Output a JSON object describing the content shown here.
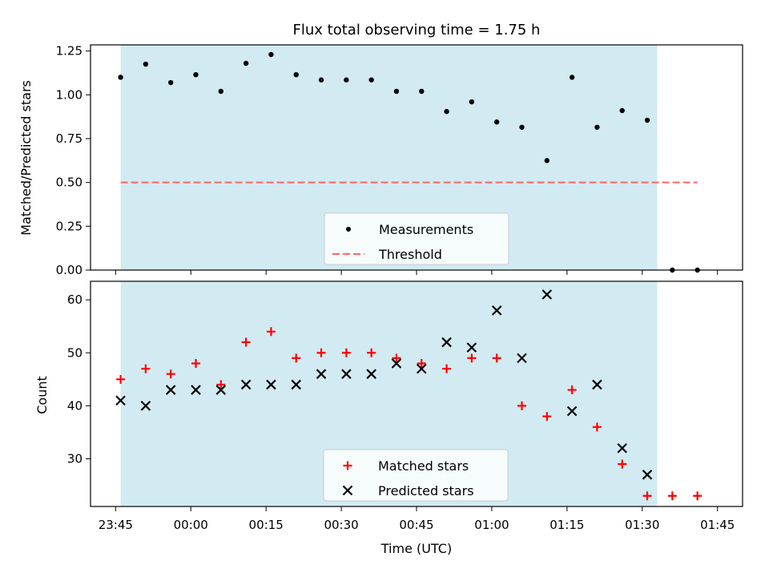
{
  "title": "Flux total observing time = 1.75 h",
  "colors": {
    "span": "#add8e6",
    "measurement": "#000000",
    "threshold": "#ff6666",
    "matched": "#ff0000",
    "predicted": "#000000"
  },
  "chart_data": [
    {
      "type": "scatter",
      "ylabel": "Matched/Predicted stars",
      "ylim": [
        0,
        1.285
      ],
      "yticks": [
        "0.00",
        "0.25",
        "0.50",
        "0.75",
        "1.00",
        "1.25"
      ],
      "xlim_minutes": [
        -20,
        110
      ],
      "shaded_span": [
        "23:46",
        "01:33"
      ],
      "legend_placement": "lower center",
      "series": [
        {
          "name": "Measurements",
          "marker": "dot",
          "x": [
            "23:46",
            "23:51",
            "23:56",
            "00:01",
            "00:06",
            "00:11",
            "00:16",
            "00:21",
            "00:26",
            "00:31",
            "00:36",
            "00:41",
            "00:46",
            "00:51",
            "00:56",
            "01:01",
            "01:06",
            "01:11",
            "01:16",
            "01:21",
            "01:26",
            "01:31",
            "01:36",
            "01:41"
          ],
          "y": [
            1.1,
            1.175,
            1.07,
            1.115,
            1.02,
            1.18,
            1.23,
            1.115,
            1.085,
            1.085,
            1.085,
            1.02,
            1.02,
            0.905,
            0.96,
            0.845,
            0.815,
            0.625,
            1.1,
            0.815,
            0.91,
            0.855,
            0.0,
            0.0
          ]
        },
        {
          "name": "Threshold",
          "marker": "dashed-line",
          "x": [
            "23:46",
            "01:41"
          ],
          "y": [
            0.5,
            0.5
          ]
        }
      ]
    },
    {
      "type": "scatter",
      "ylabel": "Count",
      "xlabel": "Time (UTC)",
      "ylim": [
        21,
        63.5
      ],
      "yticks": [
        "30",
        "40",
        "50",
        "60"
      ],
      "xticks": [
        "23:45",
        "00:00",
        "00:15",
        "00:30",
        "00:45",
        "01:00",
        "01:15",
        "01:30",
        "01:45"
      ],
      "xlim_minutes": [
        -20,
        110
      ],
      "shaded_span": [
        "23:46",
        "01:33"
      ],
      "legend_placement": "lower center",
      "series": [
        {
          "name": "Matched stars",
          "marker": "plus",
          "x": [
            "23:46",
            "23:51",
            "23:56",
            "00:01",
            "00:06",
            "00:11",
            "00:16",
            "00:21",
            "00:26",
            "00:31",
            "00:36",
            "00:41",
            "00:46",
            "00:51",
            "00:56",
            "01:01",
            "01:06",
            "01:11",
            "01:16",
            "01:21",
            "01:26",
            "01:31",
            "01:36",
            "01:41"
          ],
          "y": [
            45,
            47,
            46,
            48,
            44,
            52,
            54,
            49,
            50,
            50,
            50,
            49,
            48,
            47,
            49,
            49,
            40,
            38,
            43,
            36,
            29,
            23,
            23,
            23
          ]
        },
        {
          "name": "Predicted stars",
          "marker": "x",
          "x": [
            "23:46",
            "23:51",
            "23:56",
            "00:01",
            "00:06",
            "00:11",
            "00:16",
            "00:21",
            "00:26",
            "00:31",
            "00:36",
            "00:41",
            "00:46",
            "00:51",
            "00:56",
            "01:01",
            "01:06",
            "01:11",
            "01:16",
            "01:21",
            "01:26",
            "01:31"
          ],
          "y": [
            41,
            40,
            43,
            43,
            43,
            44,
            44,
            44,
            46,
            46,
            46,
            48,
            47,
            52,
            51,
            58,
            49,
            61,
            39,
            44,
            32,
            27
          ]
        }
      ]
    }
  ]
}
